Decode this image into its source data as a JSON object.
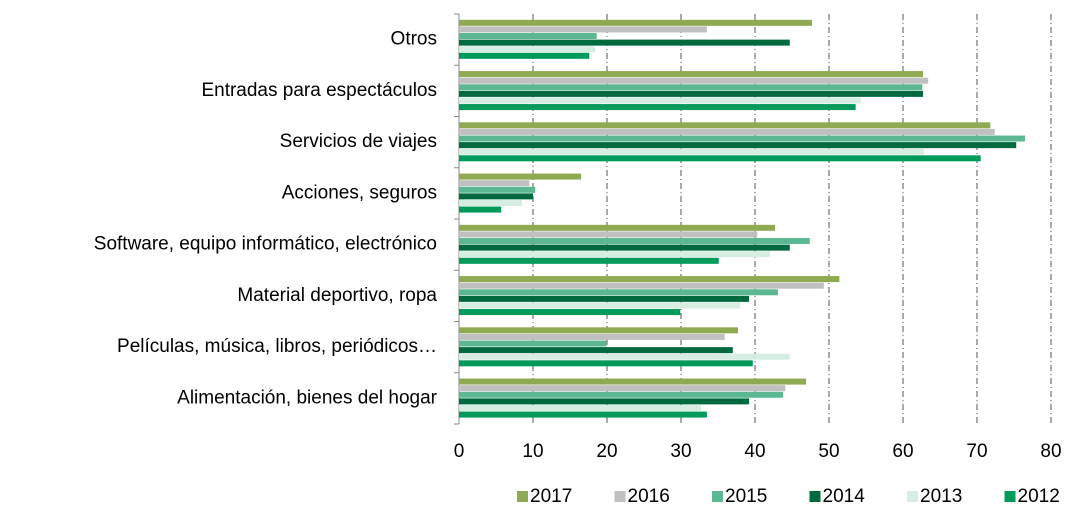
{
  "chart_data": {
    "type": "bar",
    "orientation": "horizontal",
    "categories": [
      "Otros",
      "Entradas para espectáculos",
      "Servicios de viajes",
      "Acciones, seguros",
      "Software, equipo informático, electrónico",
      "Material deportivo, ropa",
      "Películas, música, libros, periódicos…",
      "Alimentación, bienes del hogar"
    ],
    "series": [
      {
        "name": "2017",
        "color": "#8faa50",
        "values": [
          47.7,
          62.7,
          71.8,
          16.5,
          42.7,
          51.4,
          37.7,
          46.9
        ]
      },
      {
        "name": "2016",
        "color": "#c0c0c0",
        "values": [
          33.5,
          63.4,
          72.4,
          9.5,
          40.3,
          49.3,
          35.9,
          44.1
        ]
      },
      {
        "name": "2015",
        "color": "#5cb893",
        "values": [
          18.6,
          62.6,
          76.5,
          10.3,
          47.4,
          43.1,
          19.9,
          43.8
        ]
      },
      {
        "name": "2014",
        "color": "#006a3e",
        "values": [
          44.7,
          62.7,
          75.3,
          10.0,
          44.7,
          39.2,
          37.0,
          39.2
        ]
      },
      {
        "name": "2013",
        "color": "#d6ede1",
        "values": [
          18.4,
          54.3,
          62.8,
          8.5,
          42.0,
          38.0,
          44.7,
          32.7
        ]
      },
      {
        "name": "2012",
        "color": "#009a5a",
        "values": [
          17.6,
          53.6,
          70.5,
          5.7,
          35.1,
          29.9,
          39.7,
          33.5
        ]
      }
    ],
    "xlim": [
      0,
      80
    ],
    "xticks": [
      0,
      10,
      20,
      30,
      40,
      50,
      60,
      70,
      80
    ],
    "grid": true,
    "legend": "bottom"
  }
}
